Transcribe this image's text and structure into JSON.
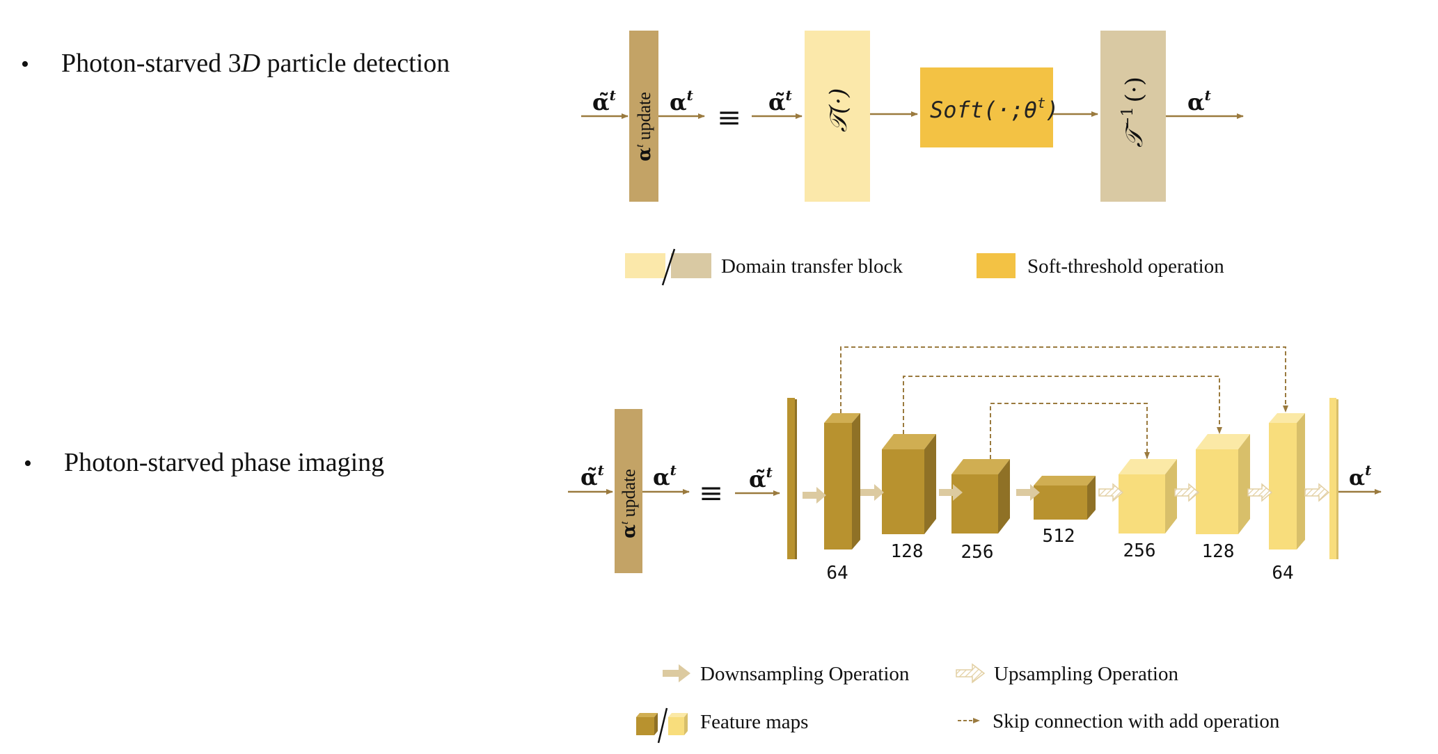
{
  "bullets": [
    {
      "marker": "•",
      "text_pre": "Photon-starved 3",
      "text_var": "D",
      "text_post": " particle detection"
    },
    {
      "marker": "•",
      "text": "Photon-starved phase imaging"
    }
  ],
  "top_diagram": {
    "input_label": "α̃",
    "input_sup": "t",
    "update_label": "update",
    "update_alpha": "α",
    "update_sup": "t",
    "output_label": "α",
    "output_sup": "t",
    "equiv": "≡",
    "transform_label": "𝒯(·)",
    "soft_label": "Soft(·;θ",
    "soft_sup": "t",
    "soft_close": ")",
    "inverse_label": "𝒯",
    "inverse_sup": "−1",
    "inverse_arg": "(·)",
    "final_label": "α",
    "final_sup": "t"
  },
  "bottom_diagram": {
    "input_label": "α̃",
    "input_sup": "t",
    "update_label": "update",
    "update_alpha": "α",
    "update_sup": "t",
    "output_label": "α",
    "output_sup": "t",
    "equiv": "≡",
    "unet_input_label": "α̃",
    "unet_input_sup": "t",
    "unet_output_label": "α",
    "unet_output_sup": "t",
    "channels": [
      "64",
      "128",
      "256",
      "512",
      "256",
      "128",
      "64"
    ]
  },
  "legend_top": {
    "domain_transfer": "Domain transfer block",
    "soft_threshold": "Soft-threshold operation"
  },
  "legend_bottom": {
    "downsampling": "Downsampling Operation",
    "upsampling": "Upsampling Operation",
    "feature_maps": "Feature maps",
    "skip": "Skip connection with add operation"
  },
  "colors": {
    "dark_tan": "#C3A366",
    "light_yellow": "#FBE8AA",
    "soft_orange": "#F3C244",
    "beige": "#D9C9A3",
    "arrow": "#9A7A3E",
    "cube_dark_front": "#B8922F",
    "cube_dark_top": "#D0AE52",
    "cube_dark_side": "#8F7126",
    "cube_light_front": "#F8DD7C",
    "cube_light_top": "#FBE9A6",
    "cube_light_side": "#D8BF6A",
    "down_arrow": "#DCCAA0"
  }
}
